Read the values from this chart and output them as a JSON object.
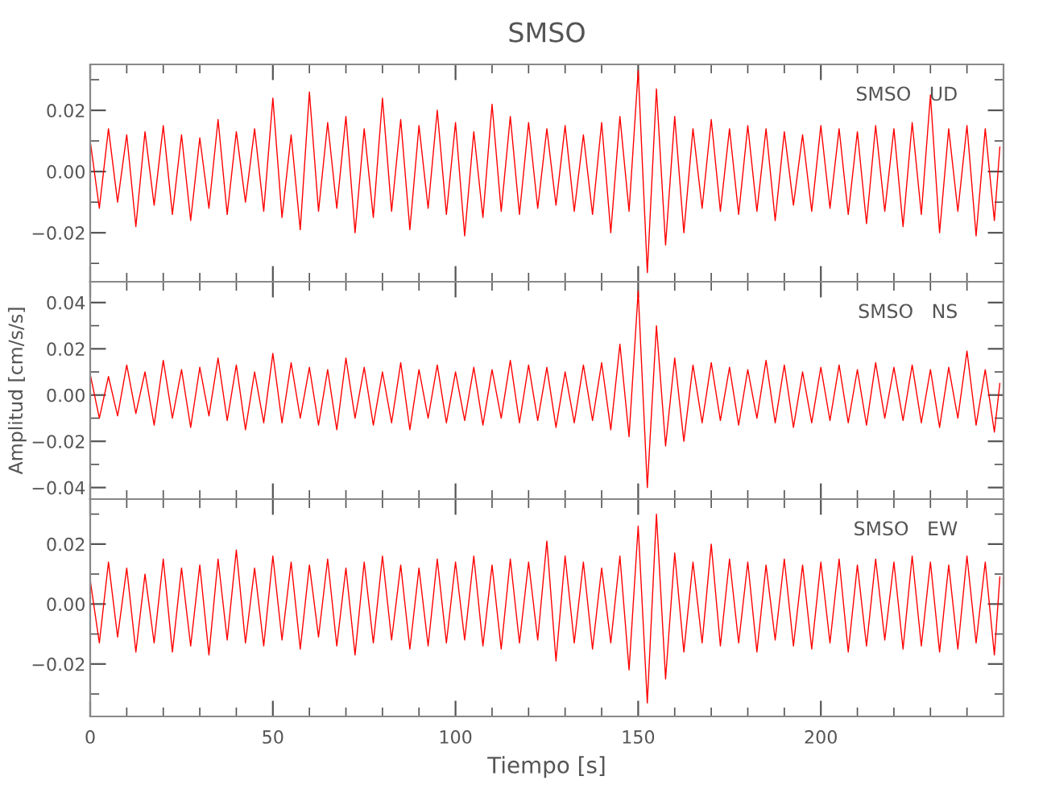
{
  "chart_data": [
    {
      "type": "line",
      "title": "SMSO",
      "annotations": [
        "SMSO   UD"
      ],
      "tick_labels": "y",
      "xlim": [
        0,
        250
      ],
      "xticks": [
        0,
        50,
        100,
        150,
        200
      ],
      "ylim": [
        -0.036,
        0.035
      ],
      "yticks": [
        {
          "value": -0.02,
          "label": "−0.02"
        },
        {
          "value": 0,
          "label": "0.00"
        },
        {
          "value": 0.02,
          "label": "0.02"
        }
      ],
      "grid": false,
      "x": [
        0,
        2.5,
        5,
        7.5,
        10,
        12.5,
        15,
        17.5,
        20,
        22.5,
        25,
        27.5,
        30,
        32.5,
        35,
        37.5,
        40,
        42.5,
        45,
        47.5,
        50,
        52.5,
        55,
        57.5,
        60,
        62.5,
        65,
        67.5,
        70,
        72.5,
        75,
        77.5,
        80,
        82.5,
        85,
        87.5,
        90,
        92.5,
        95,
        97.5,
        100,
        102.5,
        105,
        107.5,
        110,
        112.5,
        115,
        117.5,
        120,
        122.5,
        125,
        127.5,
        130,
        132.5,
        135,
        137.5,
        140,
        142.5,
        145,
        147.5,
        150,
        152.5,
        155,
        157.5,
        160,
        162.5,
        165,
        167.5,
        170,
        172.5,
        175,
        177.5,
        180,
        182.5,
        185,
        187.5,
        190,
        192.5,
        195,
        197.5,
        200,
        202.5,
        205,
        207.5,
        210,
        212.5,
        215,
        217.5,
        220,
        222.5,
        225,
        227.5,
        230,
        232.5,
        235,
        237.5,
        240,
        242.5,
        245,
        247.5,
        249
      ],
      "series": [
        {
          "color": "#ff0000",
          "values": [
            0.01,
            -0.012,
            0.014,
            -0.01,
            0.012,
            -0.018,
            0.013,
            -0.011,
            0.015,
            -0.014,
            0.012,
            -0.016,
            0.011,
            -0.012,
            0.017,
            -0.014,
            0.013,
            -0.01,
            0.014,
            -0.013,
            0.024,
            -0.015,
            0.012,
            -0.019,
            0.026,
            -0.013,
            0.016,
            -0.012,
            0.018,
            -0.02,
            0.014,
            -0.015,
            0.024,
            -0.013,
            0.017,
            -0.019,
            0.015,
            -0.012,
            0.02,
            -0.014,
            0.016,
            -0.021,
            0.013,
            -0.015,
            0.022,
            -0.013,
            0.018,
            -0.014,
            0.016,
            -0.012,
            0.014,
            -0.011,
            0.015,
            -0.013,
            0.012,
            -0.014,
            0.016,
            -0.02,
            0.018,
            -0.013,
            0.033,
            -0.033,
            0.027,
            -0.024,
            0.018,
            -0.02,
            0.014,
            -0.012,
            0.017,
            -0.013,
            0.014,
            -0.014,
            0.015,
            -0.013,
            0.014,
            -0.016,
            0.013,
            -0.011,
            0.012,
            -0.013,
            0.015,
            -0.012,
            0.014,
            -0.014,
            0.013,
            -0.017,
            0.015,
            -0.013,
            0.014,
            -0.018,
            0.016,
            -0.014,
            0.025,
            -0.02,
            0.014,
            -0.013,
            0.015,
            -0.021,
            0.014,
            -0.016,
            0.008
          ]
        }
      ]
    },
    {
      "type": "line",
      "ylabel": "Amplitud [cm/s/s]",
      "annotations": [
        "SMSO   NS"
      ],
      "tick_labels": "y",
      "xlim": [
        0,
        250
      ],
      "xticks": [
        0,
        50,
        100,
        150,
        200
      ],
      "ylim": [
        -0.045,
        0.049
      ],
      "yticks": [
        {
          "value": -0.04,
          "label": "−0.04"
        },
        {
          "value": -0.02,
          "label": "−0.02"
        },
        {
          "value": 0,
          "label": "0.00"
        },
        {
          "value": 0.02,
          "label": "0.02"
        },
        {
          "value": 0.04,
          "label": "0.04"
        }
      ],
      "grid": false,
      "x": [
        0,
        2.5,
        5,
        7.5,
        10,
        12.5,
        15,
        17.5,
        20,
        22.5,
        25,
        27.5,
        30,
        32.5,
        35,
        37.5,
        40,
        42.5,
        45,
        47.5,
        50,
        52.5,
        55,
        57.5,
        60,
        62.5,
        65,
        67.5,
        70,
        72.5,
        75,
        77.5,
        80,
        82.5,
        85,
        87.5,
        90,
        92.5,
        95,
        97.5,
        100,
        102.5,
        105,
        107.5,
        110,
        112.5,
        115,
        117.5,
        120,
        122.5,
        125,
        127.5,
        130,
        132.5,
        135,
        137.5,
        140,
        142.5,
        145,
        147.5,
        150,
        152.5,
        155,
        157.5,
        160,
        162.5,
        165,
        167.5,
        170,
        172.5,
        175,
        177.5,
        180,
        182.5,
        185,
        187.5,
        190,
        192.5,
        195,
        197.5,
        200,
        202.5,
        205,
        207.5,
        210,
        212.5,
        215,
        217.5,
        220,
        222.5,
        225,
        227.5,
        230,
        232.5,
        235,
        237.5,
        240,
        242.5,
        245,
        247.5,
        249
      ],
      "series": [
        {
          "color": "#ff0000",
          "values": [
            0.009,
            -0.01,
            0.008,
            -0.009,
            0.013,
            -0.008,
            0.01,
            -0.013,
            0.015,
            -0.01,
            0.011,
            -0.014,
            0.012,
            -0.009,
            0.016,
            -0.011,
            0.013,
            -0.015,
            0.01,
            -0.012,
            0.018,
            -0.012,
            0.014,
            -0.01,
            0.012,
            -0.013,
            0.011,
            -0.015,
            0.016,
            -0.01,
            0.012,
            -0.013,
            0.01,
            -0.012,
            0.014,
            -0.015,
            0.011,
            -0.01,
            0.013,
            -0.012,
            0.01,
            -0.011,
            0.012,
            -0.013,
            0.011,
            -0.01,
            0.015,
            -0.012,
            0.013,
            -0.011,
            0.012,
            -0.014,
            0.01,
            -0.012,
            0.013,
            -0.011,
            0.014,
            -0.015,
            0.022,
            -0.018,
            0.045,
            -0.04,
            0.03,
            -0.022,
            0.016,
            -0.02,
            0.013,
            -0.012,
            0.014,
            -0.011,
            0.012,
            -0.013,
            0.011,
            -0.01,
            0.015,
            -0.012,
            0.013,
            -0.014,
            0.01,
            -0.012,
            0.012,
            -0.011,
            0.013,
            -0.012,
            0.011,
            -0.013,
            0.014,
            -0.01,
            0.012,
            -0.011,
            0.013,
            -0.012,
            0.011,
            -0.014,
            0.012,
            -0.01,
            0.019,
            -0.013,
            0.011,
            -0.016,
            0.005
          ]
        }
      ]
    },
    {
      "type": "line",
      "xlabel": "Tiempo [s]",
      "annotations": [
        "SMSO   EW"
      ],
      "xlim": [
        0,
        250
      ],
      "xticks": [
        0,
        50,
        100,
        150,
        200
      ],
      "ylim": [
        -0.0375,
        0.035
      ],
      "yticks": [
        {
          "value": -0.02,
          "label": "−0.02"
        },
        {
          "value": 0,
          "label": "0.00"
        },
        {
          "value": 0.02,
          "label": "0.02"
        }
      ],
      "grid": false,
      "x": [
        0,
        2.5,
        5,
        7.5,
        10,
        12.5,
        15,
        17.5,
        20,
        22.5,
        25,
        27.5,
        30,
        32.5,
        35,
        37.5,
        40,
        42.5,
        45,
        47.5,
        50,
        52.5,
        55,
        57.5,
        60,
        62.5,
        65,
        67.5,
        70,
        72.5,
        75,
        77.5,
        80,
        82.5,
        85,
        87.5,
        90,
        92.5,
        95,
        97.5,
        100,
        102.5,
        105,
        107.5,
        110,
        112.5,
        115,
        117.5,
        120,
        122.5,
        125,
        127.5,
        130,
        132.5,
        135,
        137.5,
        140,
        142.5,
        145,
        147.5,
        150,
        152.5,
        155,
        157.5,
        160,
        162.5,
        165,
        167.5,
        170,
        172.5,
        175,
        177.5,
        180,
        182.5,
        185,
        187.5,
        190,
        192.5,
        195,
        197.5,
        200,
        202.5,
        205,
        207.5,
        210,
        212.5,
        215,
        217.5,
        220,
        222.5,
        225,
        227.5,
        230,
        232.5,
        235,
        237.5,
        240,
        242.5,
        245,
        247.5,
        249
      ],
      "series": [
        {
          "color": "#ff0000",
          "values": [
            0.008,
            -0.013,
            0.014,
            -0.011,
            0.012,
            -0.016,
            0.01,
            -0.013,
            0.015,
            -0.016,
            0.012,
            -0.014,
            0.013,
            -0.017,
            0.015,
            -0.012,
            0.018,
            -0.013,
            0.012,
            -0.014,
            0.016,
            -0.012,
            0.014,
            -0.015,
            0.013,
            -0.011,
            0.015,
            -0.014,
            0.012,
            -0.017,
            0.014,
            -0.013,
            0.016,
            -0.012,
            0.013,
            -0.015,
            0.012,
            -0.014,
            0.015,
            -0.013,
            0.014,
            -0.012,
            0.016,
            -0.014,
            0.013,
            -0.015,
            0.015,
            -0.013,
            0.014,
            -0.012,
            0.021,
            -0.019,
            0.016,
            -0.013,
            0.014,
            -0.015,
            0.012,
            -0.013,
            0.016,
            -0.022,
            0.026,
            -0.033,
            0.03,
            -0.025,
            0.017,
            -0.016,
            0.014,
            -0.013,
            0.02,
            -0.014,
            0.015,
            -0.013,
            0.014,
            -0.016,
            0.013,
            -0.012,
            0.015,
            -0.014,
            0.013,
            -0.015,
            0.014,
            -0.013,
            0.015,
            -0.016,
            0.013,
            -0.014,
            0.015,
            -0.012,
            0.014,
            -0.015,
            0.016,
            -0.014,
            0.014,
            -0.016,
            0.013,
            -0.015,
            0.016,
            -0.013,
            0.014,
            -0.017,
            0.009
          ]
        }
      ]
    }
  ]
}
